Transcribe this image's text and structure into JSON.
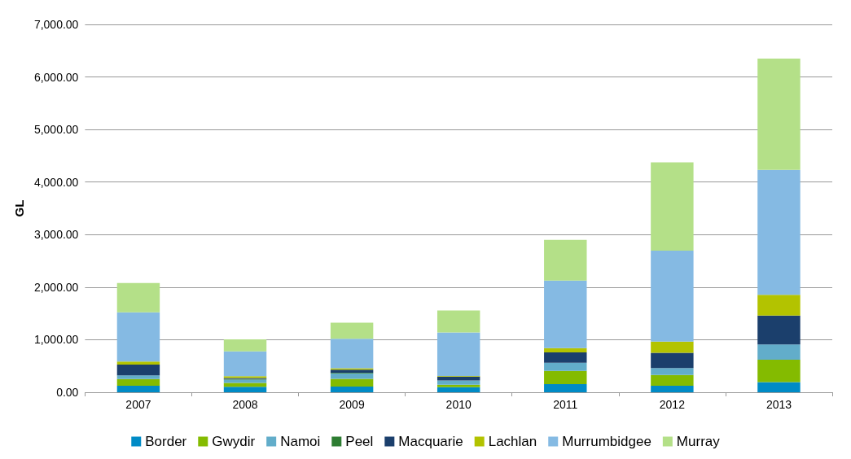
{
  "chart_data": {
    "type": "bar",
    "stacked": true,
    "ylabel": "GL",
    "categories": [
      "2007",
      "2008",
      "2009",
      "2010",
      "2011",
      "2012",
      "2013"
    ],
    "series": [
      {
        "name": "Border",
        "color": "#008bc6",
        "values": [
          125,
          105,
          110,
          95,
          155,
          125,
          195
        ]
      },
      {
        "name": "Gwydir",
        "color": "#84bb00",
        "values": [
          125,
          75,
          145,
          50,
          250,
          205,
          425
        ]
      },
      {
        "name": "Namoi",
        "color": "#62adca",
        "values": [
          70,
          60,
          105,
          80,
          155,
          130,
          290
        ]
      },
      {
        "name": "Peel",
        "color": "#2e7d32",
        "values": [
          null,
          10,
          10,
          null,
          null,
          null,
          null
        ]
      },
      {
        "name": "Macquarie",
        "color": "#1b3f6c",
        "values": [
          205,
          20,
          60,
          75,
          200,
          290,
          550
        ]
      },
      {
        "name": "Lachlan",
        "color": "#b3c300",
        "values": [
          60,
          35,
          25,
          10,
          80,
          215,
          395
        ]
      },
      {
        "name": "Murrumbidgee",
        "color": "#85bae3",
        "values": [
          935,
          475,
          565,
          830,
          1285,
          1730,
          2375
        ]
      },
      {
        "name": "Murray",
        "color": "#b4e088",
        "values": [
          560,
          225,
          305,
          415,
          775,
          1680,
          2120
        ]
      }
    ],
    "ylim": [
      0,
      7000
    ],
    "yticks": [
      {
        "value": 0,
        "label": "0.00"
      },
      {
        "value": 1000,
        "label": "1,000.00"
      },
      {
        "value": 2000,
        "label": "2,000.00"
      },
      {
        "value": 3000,
        "label": "3,000.00"
      },
      {
        "value": 4000,
        "label": "4,000.00"
      },
      {
        "value": 5000,
        "label": "5,000.00"
      },
      {
        "value": 6000,
        "label": "6,000.00"
      },
      {
        "value": 7000,
        "label": "7,000.00"
      }
    ],
    "grid": "y",
    "legend": "bottom"
  }
}
